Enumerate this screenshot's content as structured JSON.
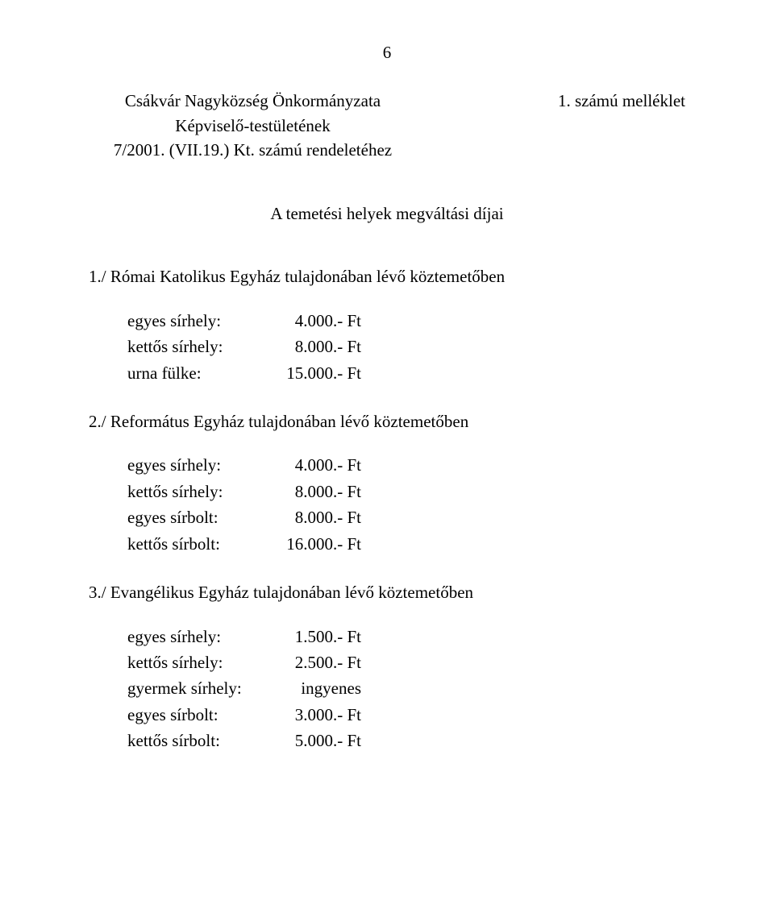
{
  "page_number": "6",
  "header": {
    "org": "Csákvár Nagyközség Önkormányzata",
    "body": "Képviselő-testületének",
    "ref": "7/2001. (VII.19.) Kt. számú rendeletéhez"
  },
  "annex": "1. számú melléklet",
  "title": "A temetési helyek megváltási díjai",
  "sections": {
    "s1": {
      "heading": "1./ Római Katolikus Egyház tulajdonában lévő köztemetőben",
      "rows": {
        "r0": {
          "label": "egyes sírhely:",
          "value": "4.000.- Ft"
        },
        "r1": {
          "label": "kettős sírhely:",
          "value": "8.000.- Ft"
        },
        "r2": {
          "label": "urna fülke:",
          "value": "15.000.- Ft"
        }
      }
    },
    "s2": {
      "heading": "2./ Református Egyház tulajdonában lévő köztemetőben",
      "rows": {
        "r0": {
          "label": "egyes sírhely:",
          "value": "4.000.- Ft"
        },
        "r1": {
          "label": "kettős sírhely:",
          "value": "8.000.- Ft"
        },
        "r2": {
          "label": "egyes sírbolt:",
          "value": "8.000.- Ft"
        },
        "r3": {
          "label": "kettős sírbolt:",
          "value": "16.000.- Ft"
        }
      }
    },
    "s3": {
      "heading": "3./ Evangélikus Egyház tulajdonában lévő köztemetőben",
      "rows": {
        "r0": {
          "label": "egyes sírhely:",
          "value": "1.500.- Ft"
        },
        "r1": {
          "label": "kettős sírhely:",
          "value": "2.500.- Ft"
        },
        "r2": {
          "label": "gyermek sírhely:",
          "value": "ingyenes"
        },
        "r3": {
          "label": "egyes sírbolt:",
          "value": "3.000.- Ft"
        },
        "r4": {
          "label": "kettős sírbolt:",
          "value": "5.000.- Ft"
        }
      }
    }
  }
}
